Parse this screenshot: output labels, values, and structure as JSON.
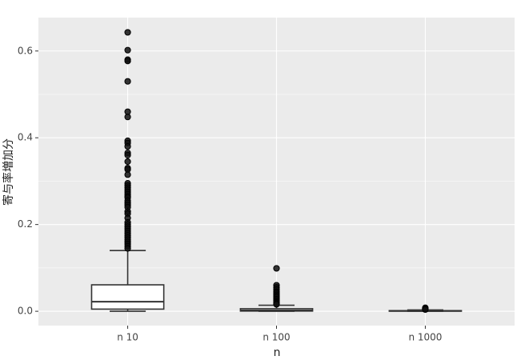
{
  "chart_data": {
    "type": "box",
    "x_label": "n",
    "y_label": "寄与率増加分",
    "categories": [
      "n 10",
      "n 100",
      "n 1000"
    ],
    "boxes": [
      {
        "min": 0,
        "q1": 0.005,
        "median": 0.022,
        "q3": 0.061,
        "max": 0.14,
        "outliers": [
          0.643,
          0.602,
          0.58,
          0.577,
          0.53,
          0.46,
          0.448,
          0.393,
          0.388,
          0.38,
          0.365,
          0.36,
          0.345,
          0.33,
          0.327,
          0.315,
          0.295,
          0.29,
          0.285,
          0.28,
          0.275,
          0.27,
          0.265,
          0.262,
          0.255,
          0.25,
          0.245,
          0.24,
          0.23,
          0.225,
          0.215,
          0.205,
          0.2,
          0.195,
          0.19,
          0.185,
          0.18,
          0.175,
          0.17,
          0.165,
          0.16,
          0.155,
          0.15,
          0.145
        ]
      },
      {
        "min": 0,
        "q1": 0.0005,
        "median": 0.002,
        "q3": 0.006,
        "max": 0.014,
        "outliers": [
          0.099,
          0.06,
          0.055,
          0.05,
          0.045,
          0.042,
          0.038,
          0.035,
          0.032,
          0.028,
          0.025,
          0.022,
          0.02,
          0.018,
          0.016
        ]
      },
      {
        "min": 0,
        "q1": 0.0003,
        "median": 0.0008,
        "q3": 0.0015,
        "max": 0.003,
        "outliers": [
          0.008,
          0.006,
          0.005,
          0.004
        ]
      }
    ],
    "ylim": [
      -0.033,
      0.677
    ],
    "yticks": [
      {
        "value": 0,
        "label": "0.0"
      },
      0.2,
      0.4,
      0.6
    ],
    "minor_yticks": [
      0.1,
      0.3,
      0.5
    ],
    "grid": true,
    "panel_color": "#ebebeb",
    "color": "#333333"
  }
}
